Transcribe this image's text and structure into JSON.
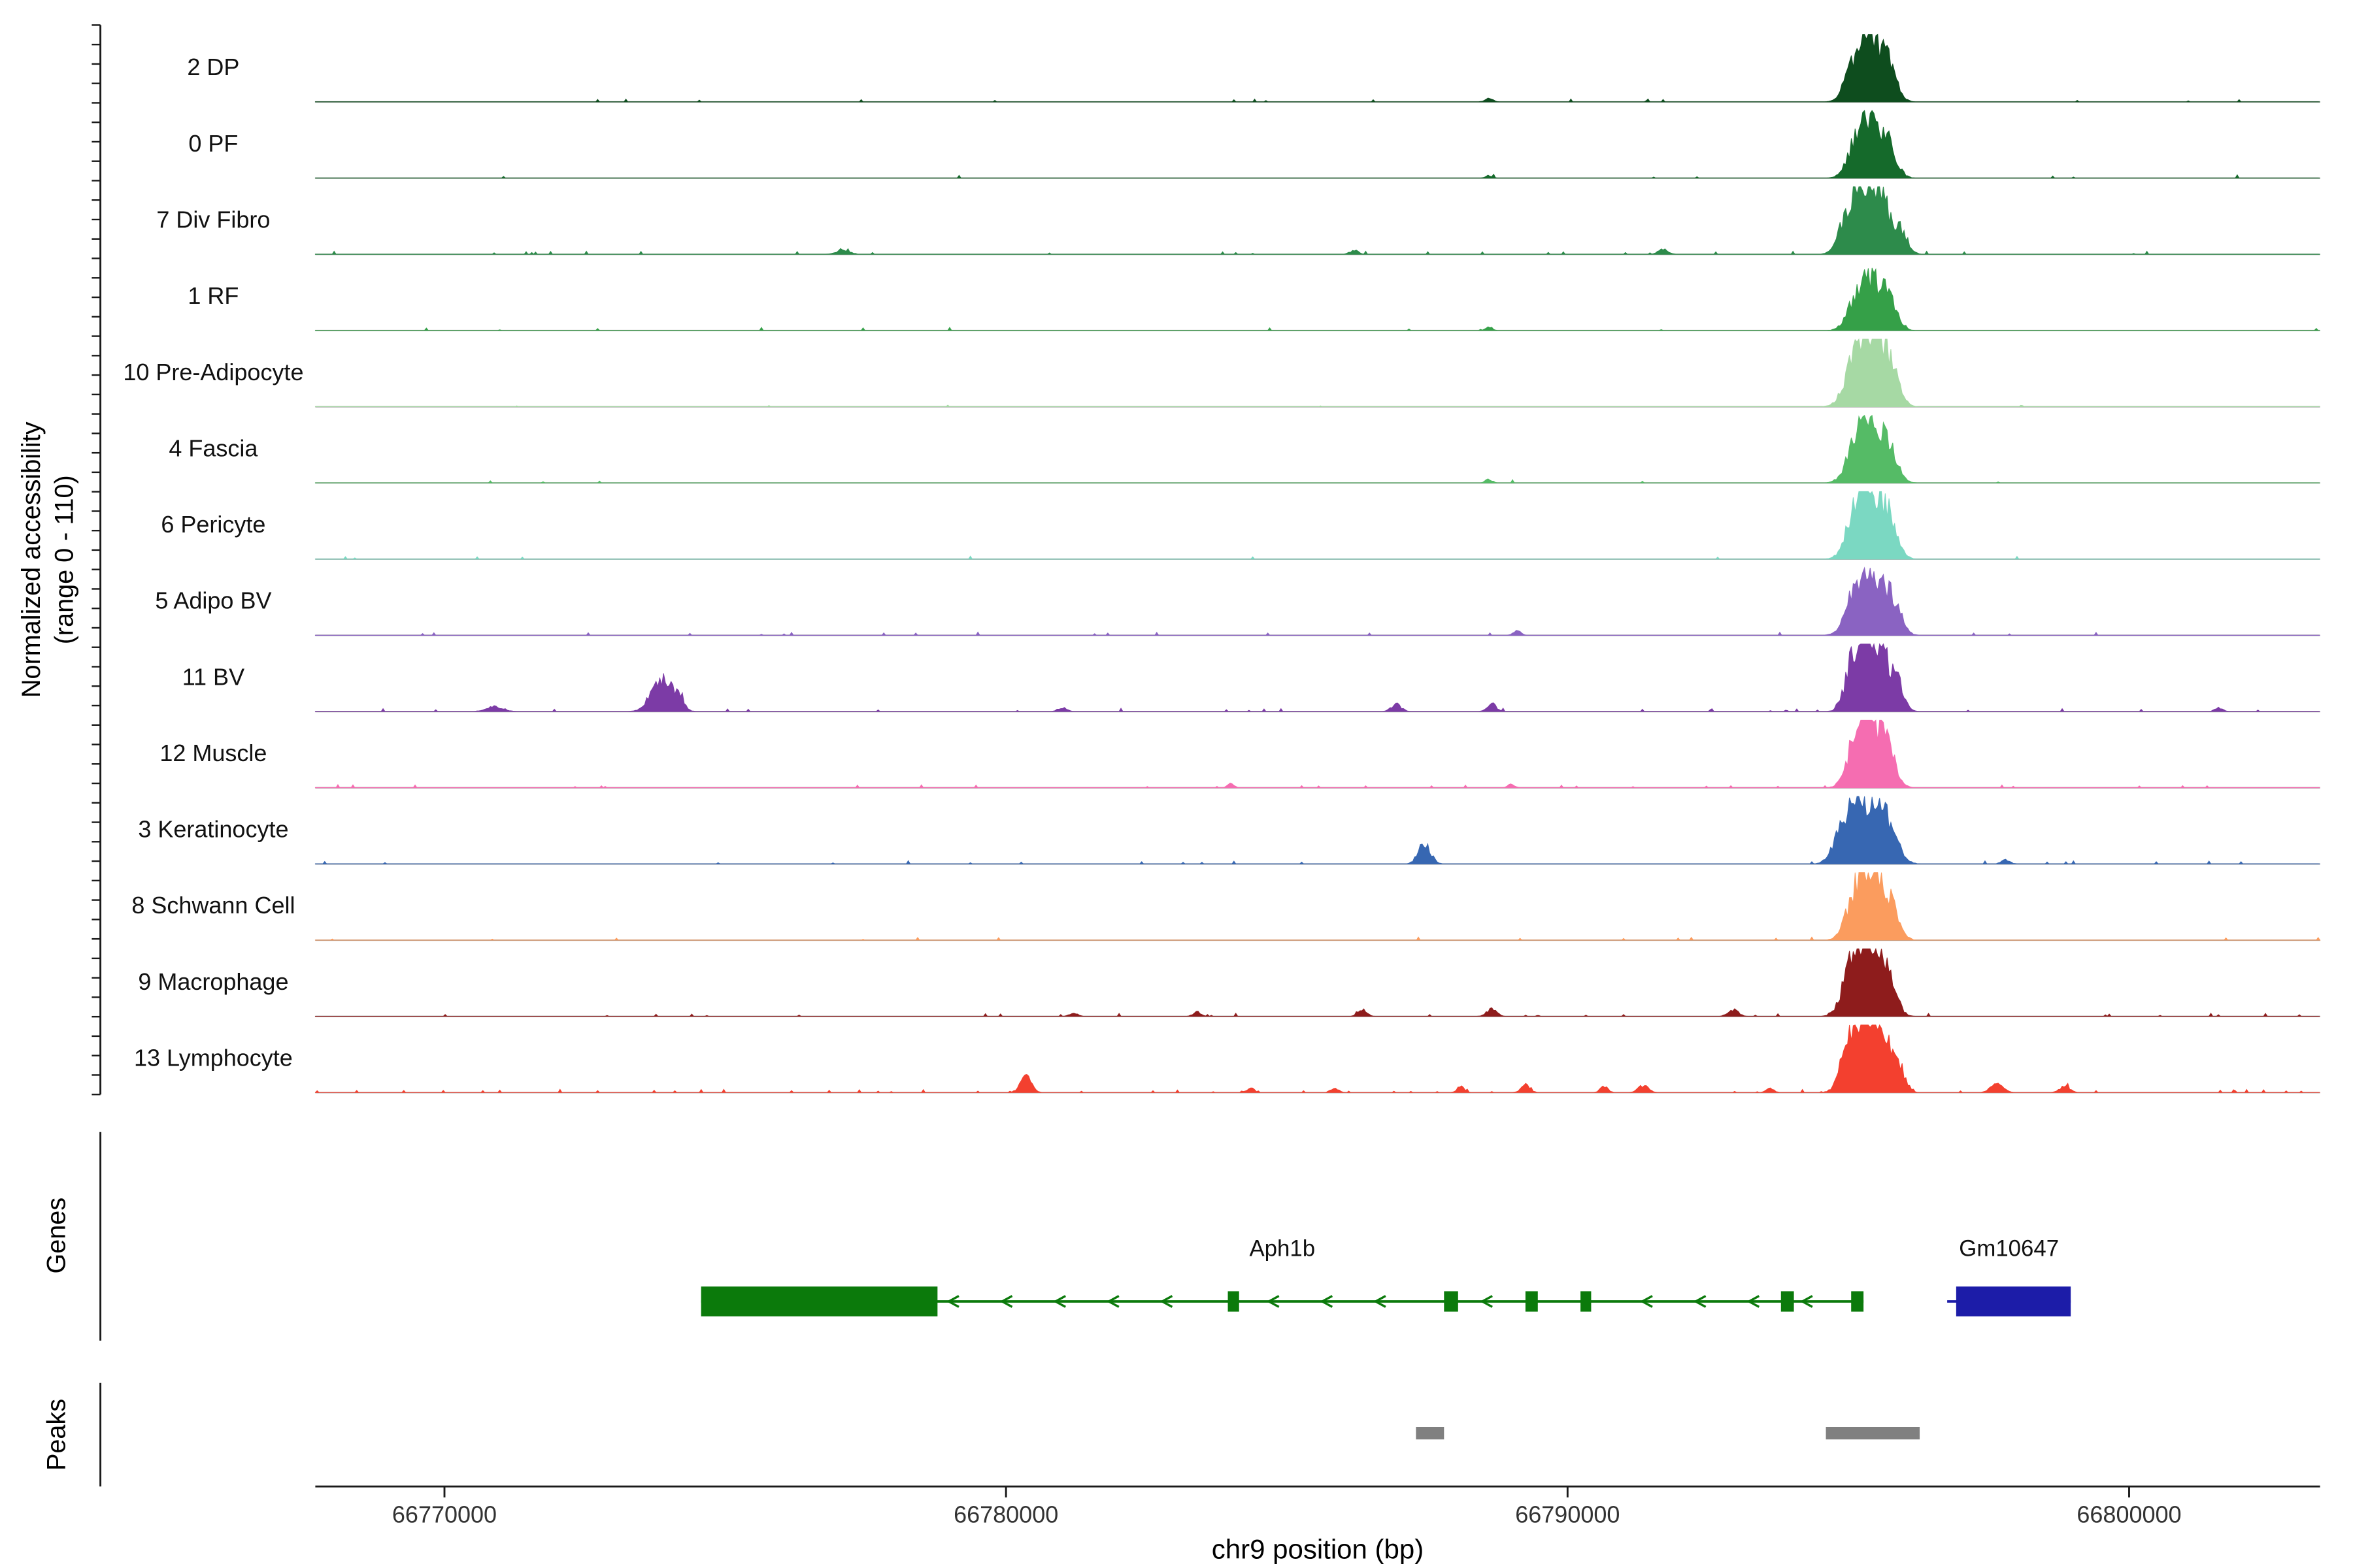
{
  "chart_data": {
    "type": "area",
    "title": "",
    "xlabel": "chr9 position (bp)",
    "ylabel_line1": "Normalized accessibility",
    "ylabel_line2": "(range 0 - 110)",
    "genes_label": "Genes",
    "peaks_label": "Peaks",
    "xlim": [
      66767700,
      66803400
    ],
    "x_ticks": [
      66770000,
      66780000,
      66790000,
      66800000
    ],
    "track_range": [
      0,
      110
    ],
    "colors": {
      "baseline": "#a3a3a3",
      "axis": "#1a1a1a",
      "peak_box": "#808080",
      "tick_label": "#333333"
    },
    "tracks": [
      {
        "label": "2 DP",
        "color": "#0e4d1e",
        "noise": 0.012,
        "bumps": [
          [
            66795150,
            170,
            60
          ],
          [
            66795420,
            200,
            82
          ],
          [
            66795720,
            150,
            42
          ],
          [
            66788600,
            70,
            6
          ]
        ]
      },
      {
        "label": "0 PF",
        "color": "#156a2b",
        "noise": 0.01,
        "bumps": [
          [
            66795180,
            170,
            55
          ],
          [
            66795450,
            200,
            72
          ],
          [
            66795740,
            140,
            33
          ],
          [
            66788600,
            60,
            4
          ]
        ]
      },
      {
        "label": "7 Div Fibro",
        "color": "#2d8b4b",
        "noise": 0.03,
        "bumps": [
          [
            66794980,
            150,
            55
          ],
          [
            66795300,
            190,
            94
          ],
          [
            66795620,
            170,
            66
          ],
          [
            66795950,
            120,
            31
          ],
          [
            66777100,
            120,
            6
          ],
          [
            66791700,
            90,
            8
          ],
          [
            66786200,
            80,
            6
          ]
        ]
      },
      {
        "label": "1 RF",
        "color": "#35a048",
        "noise": 0.012,
        "bumps": [
          [
            66795180,
            170,
            55
          ],
          [
            66795480,
            190,
            68
          ],
          [
            66795760,
            130,
            31
          ],
          [
            66788600,
            60,
            6
          ]
        ]
      },
      {
        "label": "10 Pre-Adipocyte",
        "color": "#a6d9a4",
        "noise": 0.012,
        "bumps": [
          [
            66795120,
            180,
            66
          ],
          [
            66795430,
            210,
            88
          ],
          [
            66795750,
            150,
            50
          ]
        ]
      },
      {
        "label": "4 Fascia",
        "color": "#55bb66",
        "noise": 0.012,
        "bumps": [
          [
            66795170,
            180,
            64
          ],
          [
            66795470,
            200,
            73
          ],
          [
            66795760,
            140,
            33
          ],
          [
            66788600,
            60,
            6
          ]
        ]
      },
      {
        "label": "6 Pericyte",
        "color": "#7bd8c2",
        "noise": 0.012,
        "bumps": [
          [
            66795140,
            170,
            68
          ],
          [
            66795440,
            200,
            88
          ],
          [
            66795740,
            150,
            44
          ]
        ]
      },
      {
        "label": "5 Adipo BV",
        "color": "#8a63c2",
        "noise": 0.02,
        "bumps": [
          [
            66795150,
            180,
            64
          ],
          [
            66795470,
            210,
            79
          ],
          [
            66795790,
            150,
            39
          ],
          [
            66789100,
            70,
            7
          ]
        ]
      },
      {
        "label": "11 BV",
        "color": "#7c3ba6",
        "noise": 0.025,
        "bumps": [
          [
            66795080,
            140,
            66
          ],
          [
            66795350,
            170,
            105
          ],
          [
            66795640,
            150,
            66
          ],
          [
            66795900,
            110,
            33
          ],
          [
            66773850,
            180,
            46
          ],
          [
            66774150,
            100,
            22
          ],
          [
            66770900,
            150,
            8
          ],
          [
            66786950,
            90,
            11
          ],
          [
            66788650,
            80,
            13
          ],
          [
            66781000,
            80,
            6
          ],
          [
            66801600,
            70,
            6
          ]
        ]
      },
      {
        "label": "12 Muscle",
        "color": "#f56db1",
        "noise": 0.02,
        "bumps": [
          [
            66795150,
            160,
            75
          ],
          [
            66795430,
            190,
            90
          ],
          [
            66795720,
            140,
            42
          ],
          [
            66784000,
            60,
            6
          ],
          [
            66789000,
            60,
            6
          ]
        ]
      },
      {
        "label": "3 Keratinocyte",
        "color": "#3767b2",
        "noise": 0.025,
        "bumps": [
          [
            66794950,
            180,
            60
          ],
          [
            66795320,
            220,
            82
          ],
          [
            66795700,
            180,
            55
          ],
          [
            66787450,
            110,
            31
          ],
          [
            66797800,
            80,
            6
          ]
        ]
      },
      {
        "label": "8 Schwann Cell",
        "color": "#fb9c5e",
        "noise": 0.02,
        "bumps": [
          [
            66795140,
            170,
            66
          ],
          [
            66795450,
            200,
            94
          ],
          [
            66795770,
            140,
            42
          ]
        ]
      },
      {
        "label": "9 Macrophage",
        "color": "#8e1c1c",
        "noise": 0.035,
        "bumps": [
          [
            66795080,
            170,
            79
          ],
          [
            66795400,
            200,
            97
          ],
          [
            66795700,
            150,
            50
          ],
          [
            66786350,
            80,
            10
          ],
          [
            66788650,
            90,
            11
          ],
          [
            66792950,
            90,
            11
          ],
          [
            66783400,
            70,
            7
          ],
          [
            66781200,
            70,
            6
          ]
        ]
      },
      {
        "label": "13 Lymphocyte",
        "color": "#f3402f",
        "noise": 0.045,
        "bumps": [
          [
            66795020,
            150,
            72
          ],
          [
            66795300,
            180,
            101
          ],
          [
            66795600,
            160,
            79
          ],
          [
            66795900,
            110,
            35
          ],
          [
            66780350,
            100,
            24
          ],
          [
            66789250,
            80,
            13
          ],
          [
            66791350,
            90,
            11
          ],
          [
            66790650,
            70,
            9
          ],
          [
            66797650,
            110,
            14
          ],
          [
            66798850,
            90,
            10
          ],
          [
            66784350,
            70,
            7
          ],
          [
            66785850,
            70,
            7
          ],
          [
            66788100,
            70,
            8
          ],
          [
            66793600,
            70,
            7
          ]
        ]
      }
    ],
    "genes": [
      {
        "name": "Aph1b",
        "strand": "-",
        "color": "#0b7a0b",
        "start": 66774570,
        "end": 66795270,
        "thick": [
          66774570,
          66778780
        ],
        "exons": [
          [
            66783950,
            66784150
          ],
          [
            66787800,
            66788050
          ],
          [
            66789250,
            66789470
          ],
          [
            66790230,
            66790420
          ],
          [
            66793800,
            66794030
          ],
          [
            66795050,
            66795270
          ]
        ]
      },
      {
        "name": "Gm10647",
        "strand": "+",
        "color": "#1c1ca8",
        "start": 66796760,
        "end": 66798960,
        "thick": [
          66796920,
          66798960
        ],
        "exons": []
      }
    ],
    "peaks": [
      {
        "start": 66787300,
        "end": 66787800
      },
      {
        "start": 66794600,
        "end": 66796270
      }
    ]
  }
}
